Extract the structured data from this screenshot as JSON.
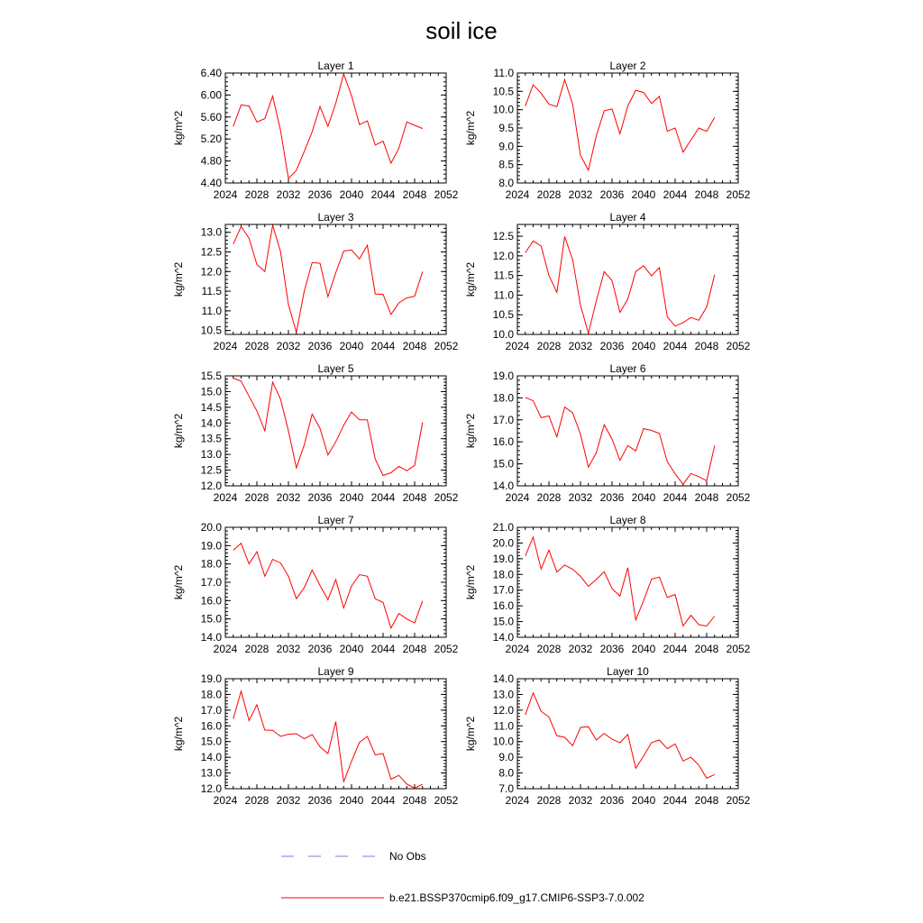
{
  "figure": {
    "title": "soil ice",
    "legend": [
      {
        "label": "No Obs",
        "color": "#6f7fd8",
        "style": "dashed"
      },
      {
        "label": "b.e21.BSSP370cmip6.f09_g17.CMIP6-SSP3-7.0.002",
        "color": "#ff0000",
        "style": "solid"
      }
    ]
  },
  "chart_data": [
    {
      "type": "line",
      "title": "Layer 1",
      "xlabel": "",
      "ylabel": "kg/m^2",
      "xlim": [
        2024,
        2052
      ],
      "ylim": [
        4.4,
        6.4
      ],
      "xticks": [
        "2024",
        "2028",
        "2032",
        "2036",
        "2040",
        "2044",
        "2048",
        "2052"
      ],
      "yticks": [
        "4.40",
        "4.80",
        "5.20",
        "5.60",
        "6.00",
        "6.40"
      ],
      "x": [
        2025,
        2026,
        2027,
        2028,
        2029,
        2030,
        2031,
        2032,
        2033,
        2034,
        2035,
        2036,
        2037,
        2038,
        2039,
        2040,
        2041,
        2042,
        2043,
        2044,
        2045,
        2046,
        2047,
        2048,
        2049
      ],
      "series": [
        {
          "values": [
            5.43,
            5.82,
            5.8,
            5.51,
            5.57,
            5.98,
            5.35,
            4.48,
            4.63,
            4.97,
            5.33,
            5.79,
            5.43,
            5.85,
            6.38,
            5.99,
            5.46,
            5.53,
            5.09,
            5.16,
            4.76,
            5.03,
            5.51,
            5.45,
            5.39
          ],
          "color": "#ff0000"
        }
      ]
    },
    {
      "type": "line",
      "title": "Layer 2",
      "xlabel": "",
      "ylabel": "kg/m^2",
      "xlim": [
        2024,
        2052
      ],
      "ylim": [
        8.0,
        11.0
      ],
      "xticks": [
        "2024",
        "2028",
        "2032",
        "2036",
        "2040",
        "2044",
        "2048",
        "2052"
      ],
      "yticks": [
        "8.0",
        "8.5",
        "9.0",
        "9.5",
        "10.0",
        "10.5",
        "11.0"
      ],
      "x": [
        2025,
        2026,
        2027,
        2028,
        2029,
        2030,
        2031,
        2032,
        2033,
        2034,
        2035,
        2036,
        2037,
        2038,
        2039,
        2040,
        2041,
        2042,
        2043,
        2044,
        2045,
        2046,
        2047,
        2048,
        2049
      ],
      "series": [
        {
          "values": [
            10.1,
            10.68,
            10.45,
            10.15,
            10.08,
            10.82,
            10.15,
            8.75,
            8.35,
            9.28,
            9.97,
            10.02,
            9.34,
            10.1,
            10.53,
            10.47,
            10.17,
            10.36,
            9.41,
            9.5,
            8.84,
            9.17,
            9.5,
            9.41,
            9.79
          ],
          "color": "#ff0000"
        }
      ]
    },
    {
      "type": "line",
      "title": "Layer 3",
      "xlabel": "",
      "ylabel": "kg/m^2",
      "xlim": [
        2024,
        2052
      ],
      "ylim": [
        10.4,
        13.2
      ],
      "xticks": [
        "2024",
        "2028",
        "2032",
        "2036",
        "2040",
        "2044",
        "2048",
        "2052"
      ],
      "yticks": [
        "10.5",
        "11.0",
        "11.5",
        "12.0",
        "12.5",
        "13.0"
      ],
      "x": [
        2025,
        2026,
        2027,
        2028,
        2029,
        2030,
        2031,
        2032,
        2033,
        2034,
        2035,
        2036,
        2037,
        2038,
        2039,
        2040,
        2041,
        2042,
        2043,
        2044,
        2045,
        2046,
        2047,
        2048,
        2049
      ],
      "series": [
        {
          "values": [
            12.7,
            13.15,
            12.85,
            12.18,
            12.0,
            13.18,
            12.5,
            11.16,
            10.45,
            11.5,
            12.23,
            12.21,
            11.36,
            11.97,
            12.52,
            12.55,
            12.32,
            12.67,
            11.43,
            11.42,
            10.91,
            11.2,
            11.33,
            11.37,
            12.0
          ],
          "color": "#ff0000"
        }
      ]
    },
    {
      "type": "line",
      "title": "Layer 4",
      "xlabel": "",
      "ylabel": "kg/m^2",
      "xlim": [
        2024,
        2052
      ],
      "ylim": [
        10.0,
        12.8
      ],
      "xticks": [
        "2024",
        "2028",
        "2032",
        "2036",
        "2040",
        "2044",
        "2048",
        "2052"
      ],
      "yticks": [
        "10.0",
        "10.5",
        "11.0",
        "11.5",
        "12.0",
        "12.5"
      ],
      "x": [
        2025,
        2026,
        2027,
        2028,
        2029,
        2030,
        2031,
        2032,
        2033,
        2034,
        2035,
        2036,
        2037,
        2038,
        2039,
        2040,
        2041,
        2042,
        2043,
        2044,
        2045,
        2046,
        2047,
        2048,
        2049
      ],
      "series": [
        {
          "values": [
            12.08,
            12.38,
            12.25,
            11.5,
            11.07,
            12.49,
            11.9,
            10.74,
            10.03,
            10.85,
            11.6,
            11.37,
            10.56,
            10.9,
            11.6,
            11.75,
            11.49,
            11.7,
            10.45,
            10.21,
            10.3,
            10.43,
            10.36,
            10.7,
            11.52
          ],
          "color": "#ff0000"
        }
      ]
    },
    {
      "type": "line",
      "title": "Layer 5",
      "xlabel": "",
      "ylabel": "kg/m^2",
      "xlim": [
        2024,
        2052
      ],
      "ylim": [
        12.0,
        15.5
      ],
      "xticks": [
        "2024",
        "2028",
        "2032",
        "2036",
        "2040",
        "2044",
        "2048",
        "2052"
      ],
      "yticks": [
        "12.0",
        "12.5",
        "13.0",
        "13.5",
        "14.0",
        "14.5",
        "15.0",
        "15.5"
      ],
      "x": [
        2025,
        2026,
        2027,
        2028,
        2029,
        2030,
        2031,
        2032,
        2033,
        2034,
        2035,
        2036,
        2037,
        2038,
        2039,
        2040,
        2041,
        2042,
        2043,
        2044,
        2045,
        2046,
        2047,
        2048,
        2049
      ],
      "series": [
        {
          "values": [
            15.43,
            15.33,
            14.85,
            14.38,
            13.75,
            15.3,
            14.75,
            13.75,
            12.57,
            13.3,
            14.28,
            13.83,
            12.98,
            13.4,
            13.93,
            14.35,
            14.1,
            14.1,
            12.85,
            12.33,
            12.42,
            12.62,
            12.48,
            12.65,
            14.02
          ],
          "color": "#ff0000"
        }
      ]
    },
    {
      "type": "line",
      "title": "Layer 6",
      "xlabel": "",
      "ylabel": "kg/m^2",
      "xlim": [
        2024,
        2052
      ],
      "ylim": [
        14.0,
        19.0
      ],
      "xticks": [
        "2024",
        "2028",
        "2032",
        "2036",
        "2040",
        "2044",
        "2048",
        "2052"
      ],
      "yticks": [
        "14.0",
        "15.0",
        "16.0",
        "17.0",
        "18.0",
        "19.0"
      ],
      "x": [
        2025,
        2026,
        2027,
        2028,
        2029,
        2030,
        2031,
        2032,
        2033,
        2034,
        2035,
        2036,
        2037,
        2038,
        2039,
        2040,
        2041,
        2042,
        2043,
        2044,
        2045,
        2046,
        2047,
        2048,
        2049
      ],
      "series": [
        {
          "values": [
            18.02,
            17.87,
            17.1,
            17.18,
            16.23,
            17.58,
            17.32,
            16.35,
            14.85,
            15.5,
            16.78,
            16.13,
            15.16,
            15.83,
            15.59,
            16.6,
            16.52,
            16.38,
            15.1,
            14.55,
            14.07,
            14.56,
            14.42,
            14.23,
            15.83
          ],
          "color": "#ff0000"
        }
      ]
    },
    {
      "type": "line",
      "title": "Layer 7",
      "xlabel": "",
      "ylabel": "kg/m^2",
      "xlim": [
        2024,
        2052
      ],
      "ylim": [
        14.0,
        20.0
      ],
      "xticks": [
        "2024",
        "2028",
        "2032",
        "2036",
        "2040",
        "2044",
        "2048",
        "2052"
      ],
      "yticks": [
        "14.0",
        "15.0",
        "16.0",
        "17.0",
        "18.0",
        "19.0",
        "20.0"
      ],
      "x": [
        2025,
        2026,
        2027,
        2028,
        2029,
        2030,
        2031,
        2032,
        2033,
        2034,
        2035,
        2036,
        2037,
        2038,
        2039,
        2040,
        2041,
        2042,
        2043,
        2044,
        2045,
        2046,
        2047,
        2048,
        2049
      ],
      "series": [
        {
          "values": [
            18.75,
            19.13,
            18.0,
            18.67,
            17.33,
            18.25,
            18.05,
            17.33,
            16.1,
            16.7,
            17.67,
            16.83,
            16.05,
            17.15,
            15.6,
            16.8,
            17.42,
            17.33,
            16.1,
            15.9,
            14.5,
            15.3,
            15.0,
            14.78,
            15.98
          ],
          "color": "#ff0000"
        }
      ]
    },
    {
      "type": "line",
      "title": "Layer 8",
      "xlabel": "",
      "ylabel": "kg/m^2",
      "xlim": [
        2024,
        2052
      ],
      "ylim": [
        14.0,
        21.0
      ],
      "xticks": [
        "2024",
        "2028",
        "2032",
        "2036",
        "2040",
        "2044",
        "2048",
        "2052"
      ],
      "yticks": [
        "14.0",
        "15.0",
        "16.0",
        "17.0",
        "18.0",
        "19.0",
        "20.0",
        "21.0"
      ],
      "x": [
        2025,
        2026,
        2027,
        2028,
        2029,
        2030,
        2031,
        2032,
        2033,
        2034,
        2035,
        2036,
        2037,
        2038,
        2039,
        2040,
        2041,
        2042,
        2043,
        2044,
        2045,
        2046,
        2047,
        2048,
        2049
      ],
      "series": [
        {
          "values": [
            19.18,
            20.38,
            18.35,
            19.55,
            18.15,
            18.6,
            18.33,
            17.88,
            17.25,
            17.68,
            18.17,
            17.1,
            16.62,
            18.43,
            15.1,
            16.33,
            17.7,
            17.83,
            16.53,
            16.72,
            14.72,
            15.4,
            14.8,
            14.72,
            15.35
          ],
          "color": "#ff0000"
        }
      ]
    },
    {
      "type": "line",
      "title": "Layer 9",
      "xlabel": "",
      "ylabel": "kg/m^2",
      "xlim": [
        2024,
        2052
      ],
      "ylim": [
        12.0,
        19.0
      ],
      "xticks": [
        "2024",
        "2028",
        "2032",
        "2036",
        "2040",
        "2044",
        "2048",
        "2052"
      ],
      "yticks": [
        "12.0",
        "13.0",
        "14.0",
        "15.0",
        "16.0",
        "17.0",
        "18.0",
        "19.0"
      ],
      "x": [
        2025,
        2026,
        2027,
        2028,
        2029,
        2030,
        2031,
        2032,
        2033,
        2034,
        2035,
        2036,
        2037,
        2038,
        2039,
        2040,
        2041,
        2042,
        2043,
        2044,
        2045,
        2046,
        2047,
        2048,
        2049
      ],
      "series": [
        {
          "values": [
            16.45,
            18.2,
            16.33,
            17.35,
            15.73,
            15.72,
            15.33,
            15.47,
            15.5,
            15.18,
            15.45,
            14.67,
            14.23,
            16.27,
            12.43,
            13.75,
            14.95,
            15.33,
            14.15,
            14.23,
            12.6,
            12.85,
            12.3,
            12.03,
            12.28
          ],
          "color": "#ff0000"
        }
      ]
    },
    {
      "type": "line",
      "title": "Layer 10",
      "xlabel": "",
      "ylabel": "kg/m^2",
      "xlim": [
        2024,
        2052
      ],
      "ylim": [
        7.0,
        14.0
      ],
      "xticks": [
        "2024",
        "2028",
        "2032",
        "2036",
        "2040",
        "2044",
        "2048",
        "2052"
      ],
      "yticks": [
        "7.0",
        "8.0",
        "9.0",
        "10.0",
        "11.0",
        "12.0",
        "13.0",
        "14.0"
      ],
      "x": [
        2025,
        2026,
        2027,
        2028,
        2029,
        2030,
        2031,
        2032,
        2033,
        2034,
        2035,
        2036,
        2037,
        2038,
        2039,
        2040,
        2041,
        2042,
        2043,
        2044,
        2045,
        2046,
        2047,
        2048,
        2049
      ],
      "series": [
        {
          "values": [
            11.7,
            13.1,
            11.93,
            11.57,
            10.37,
            10.27,
            9.73,
            10.9,
            10.95,
            10.1,
            10.52,
            10.15,
            9.93,
            10.45,
            8.3,
            9.07,
            9.93,
            10.1,
            9.55,
            9.85,
            8.77,
            9.0,
            8.5,
            7.67,
            7.9
          ],
          "color": "#ff0000"
        }
      ]
    }
  ]
}
